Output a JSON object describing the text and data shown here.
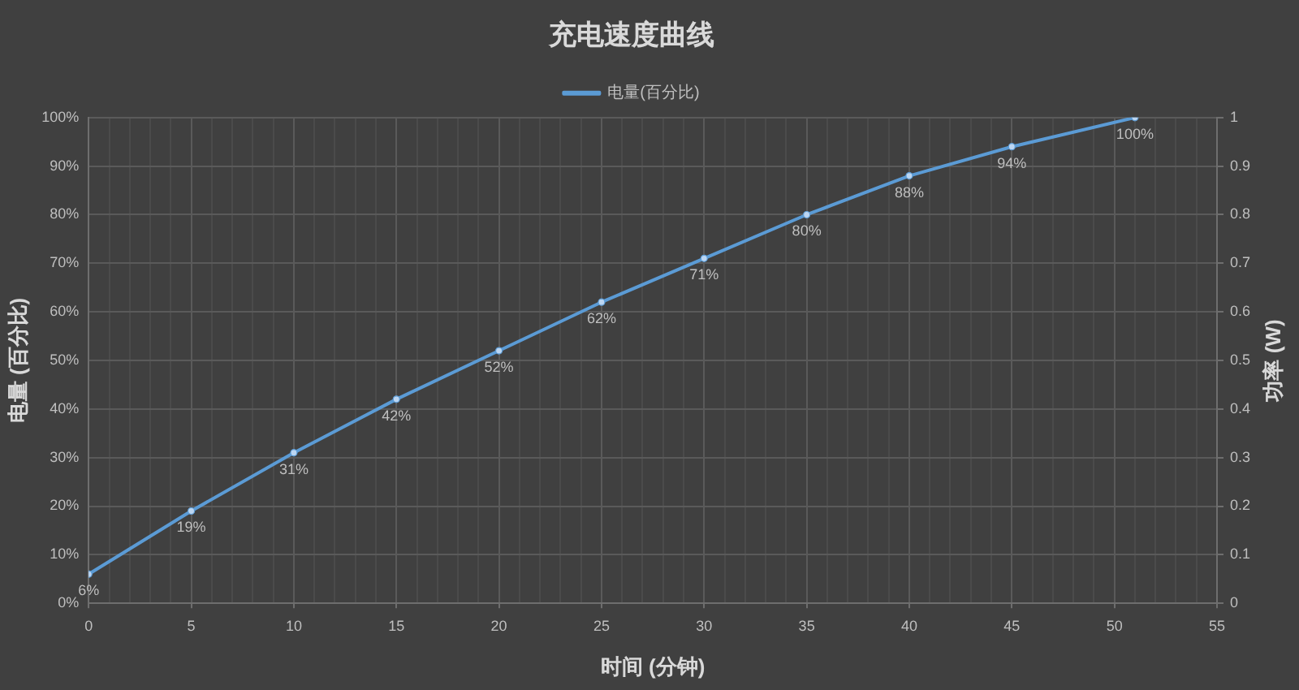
{
  "chart_data": {
    "type": "line",
    "title": "充电速度曲线",
    "xlabel": "时间 (分钟)",
    "ylabel": "电量 (百分比)",
    "y2label": "功率 (W)",
    "x": [
      0,
      5,
      10,
      15,
      20,
      25,
      30,
      35,
      40,
      45,
      51
    ],
    "series": [
      {
        "name": "电量(百分比)",
        "color": "#5b9bd5",
        "values": [
          6,
          19,
          31,
          42,
          52,
          62,
          71,
          80,
          88,
          94,
          100
        ],
        "value_labels": [
          "6%",
          "19%",
          "31%",
          "42%",
          "52%",
          "62%",
          "71%",
          "80%",
          "88%",
          "94%",
          "100%"
        ]
      }
    ],
    "xlim": [
      0,
      55
    ],
    "xticks": [
      0,
      {
        "value": 1,
        "label": null
      },
      {
        "value": 2,
        "label": null
      },
      {
        "value": 3,
        "label": null
      },
      {
        "value": 4,
        "label": null
      },
      5,
      {
        "value": 6,
        "label": null
      },
      {
        "value": 7,
        "label": null
      },
      {
        "value": 8,
        "label": null
      },
      {
        "value": 9,
        "label": null
      },
      10,
      {
        "value": 11,
        "label": null
      },
      {
        "value": 12,
        "label": null
      },
      {
        "value": 13,
        "label": null
      },
      {
        "value": 14,
        "label": null
      },
      15,
      {
        "value": 16,
        "label": null
      },
      {
        "value": 17,
        "label": null
      },
      {
        "value": 18,
        "label": null
      },
      {
        "value": 19,
        "label": null
      },
      20,
      {
        "value": 21,
        "label": null
      },
      {
        "value": 22,
        "label": null
      },
      {
        "value": 23,
        "label": null
      },
      {
        "value": 24,
        "label": null
      },
      25,
      {
        "value": 26,
        "label": null
      },
      {
        "value": 27,
        "label": null
      },
      {
        "value": 28,
        "label": null
      },
      {
        "value": 29,
        "label": null
      },
      30,
      {
        "value": 31,
        "label": null
      },
      {
        "value": 32,
        "label": null
      },
      {
        "value": 33,
        "label": null
      },
      {
        "value": 34,
        "label": null
      },
      35,
      {
        "value": 36,
        "label": null
      },
      {
        "value": 37,
        "label": null
      },
      {
        "value": 38,
        "label": null
      },
      {
        "value": 39,
        "label": null
      },
      40,
      {
        "value": 41,
        "label": null
      },
      {
        "value": 42,
        "label": null
      },
      {
        "value": 43,
        "label": null
      },
      {
        "value": 44,
        "label": null
      },
      45,
      {
        "value": 46,
        "label": null
      },
      {
        "value": 47,
        "label": null
      },
      {
        "value": 48,
        "label": null
      },
      {
        "value": 49,
        "label": null
      },
      50,
      {
        "value": 51,
        "label": null
      },
      {
        "value": 52,
        "label": null
      },
      {
        "value": 53,
        "label": null
      },
      {
        "value": 54,
        "label": null
      },
      55
    ],
    "ylim": [
      0,
      100
    ],
    "yticks": [
      {
        "value": 0,
        "label": "0%"
      },
      {
        "value": 10,
        "label": "10%"
      },
      {
        "value": 20,
        "label": "20%"
      },
      {
        "value": 30,
        "label": "30%"
      },
      {
        "value": 40,
        "label": "40%"
      },
      {
        "value": 50,
        "label": "50%"
      },
      {
        "value": 60,
        "label": "60%"
      },
      {
        "value": 70,
        "label": "70%"
      },
      {
        "value": 80,
        "label": "80%"
      },
      {
        "value": 90,
        "label": "90%"
      },
      {
        "value": 100,
        "label": "100%"
      }
    ],
    "y2lim": [
      0,
      1
    ],
    "y2ticks": [
      0,
      0.1,
      0.2,
      0.3,
      0.4,
      0.5,
      0.6,
      0.7,
      0.8,
      0.9,
      1
    ],
    "grid": true,
    "legend": "top",
    "marker": "circle",
    "line_style": "solid"
  }
}
